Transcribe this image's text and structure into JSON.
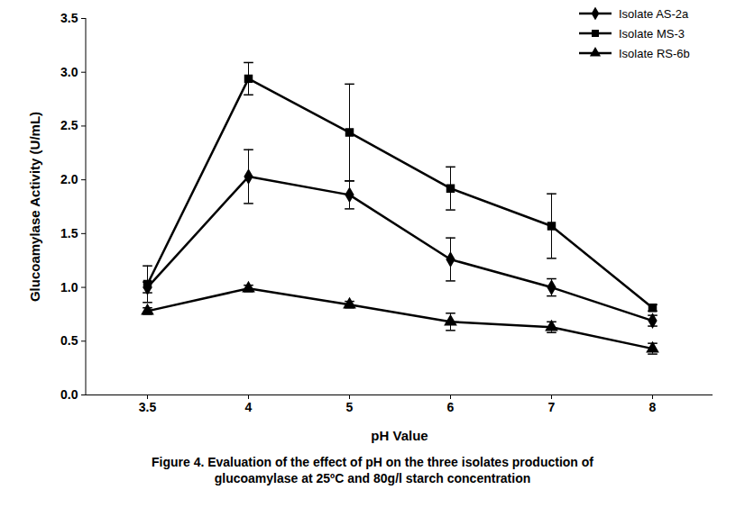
{
  "chart_data": {
    "type": "line",
    "title": "Figure 4. Evaluation of the effect of pH on the three isolates production of glucoamylase at 25ºC and 80g/l starch concentration",
    "x_label": "pH Value",
    "y_label": "Glucoamylase Activity (U/mL)",
    "categories": [
      "3.5",
      "4",
      "5",
      "6",
      "7",
      "8"
    ],
    "series": [
      {
        "name": "Isolate AS-2a",
        "color": "#000000",
        "marker": "diamond",
        "values": [
          1.0,
          2.03,
          1.86,
          1.26,
          1.0,
          0.69
        ],
        "error": [
          0.05,
          0.25,
          0.13,
          0.2,
          0.08,
          0.05
        ]
      },
      {
        "name": "Isolate MS-3",
        "color": "#000000",
        "marker": "square",
        "values": [
          1.03,
          2.94,
          2.44,
          1.92,
          1.57,
          0.81
        ],
        "error": [
          0.17,
          0.15,
          0.45,
          0.2,
          0.3,
          0.03
        ]
      },
      {
        "name": "Isolate RS-6b",
        "color": "#000000",
        "marker": "triangle",
        "values": [
          0.78,
          0.99,
          0.84,
          0.68,
          0.63,
          0.43
        ],
        "error": [
          0.03,
          0.03,
          0.03,
          0.08,
          0.05,
          0.05
        ]
      }
    ],
    "ylim": [
      0,
      3.5
    ],
    "yticks": [
      0,
      0.5,
      1,
      1.5,
      2,
      2.5,
      3,
      3.5
    ],
    "grid": false,
    "legend": "top-right"
  }
}
